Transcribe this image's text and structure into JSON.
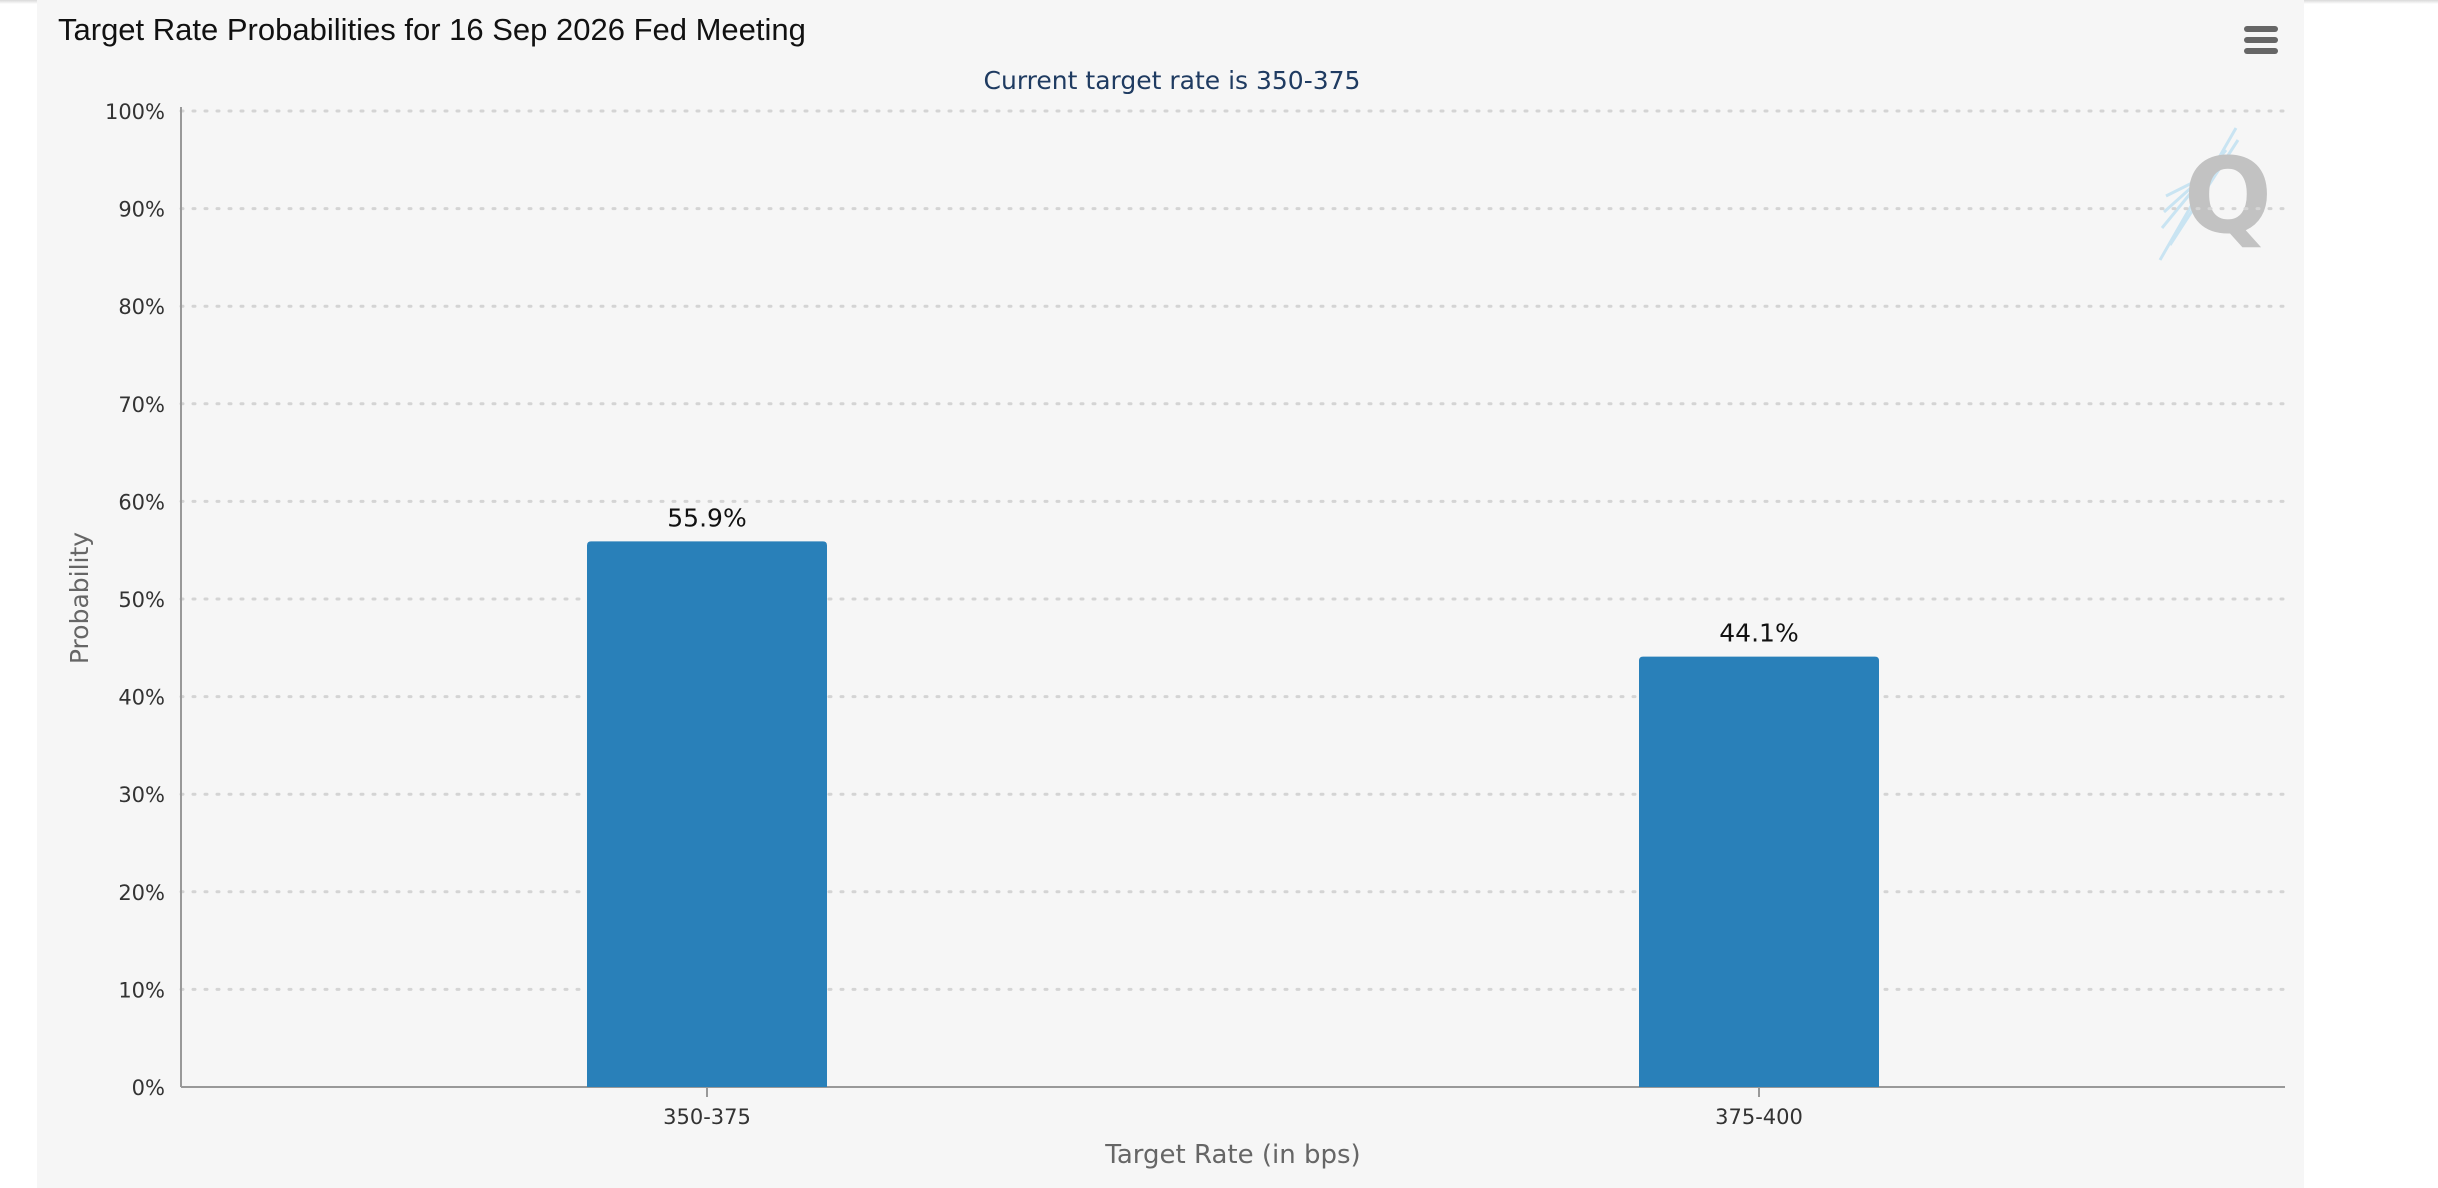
{
  "header": {
    "title": "Target Rate Probabilities for 16 Sep 2026 Fed Meeting",
    "menu_icon": "hamburger-menu-icon"
  },
  "watermark": {
    "icon": "quikstrike-logo-icon",
    "letter": "Q"
  },
  "chart_data": {
    "type": "bar",
    "title": "Target Rate Probabilities for 16 Sep 2026 Fed Meeting",
    "subtitle": "Current target rate is 350-375",
    "xlabel": "Target Rate (in bps)",
    "ylabel": "Probability",
    "categories": [
      "350-375",
      "375-400"
    ],
    "values": [
      55.9,
      44.1
    ],
    "data_labels": [
      "55.9%",
      "44.1%"
    ],
    "ylim": [
      0,
      100
    ],
    "yticks": [
      0,
      10,
      20,
      30,
      40,
      50,
      60,
      70,
      80,
      90,
      100
    ],
    "ytick_labels": [
      "0%",
      "10%",
      "20%",
      "30%",
      "40%",
      "50%",
      "60%",
      "70%",
      "80%",
      "90%",
      "100%"
    ],
    "grid": true,
    "legend": "none",
    "colors": {
      "bar": "#2980b9",
      "subtitle": "#1f3b61",
      "grid": "#d4d4d4",
      "axis": "#999999",
      "tick_label": "#333333",
      "axis_title": "#666666"
    }
  }
}
